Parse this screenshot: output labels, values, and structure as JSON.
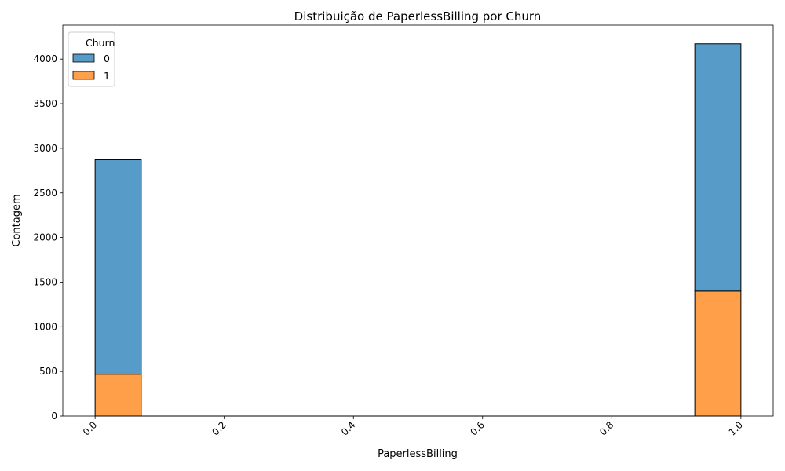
{
  "chart_data": {
    "type": "bar",
    "stacked": true,
    "title": "Distribuição de PaperlessBilling por Churn",
    "xlabel": "PaperlessBilling",
    "ylabel": "Contagem",
    "xlim": [
      -0.05,
      1.05
    ],
    "ylim": [
      0,
      4380
    ],
    "x_ticks": [
      0.0,
      0.2,
      0.4,
      0.6,
      0.8,
      1.0
    ],
    "x_tick_labels": [
      "0.0",
      "0.2",
      "0.4",
      "0.6",
      "0.8",
      "1.0"
    ],
    "y_ticks": [
      0,
      500,
      1000,
      1500,
      2000,
      2500,
      3000,
      3500,
      4000
    ],
    "y_tick_labels": [
      "0",
      "500",
      "1000",
      "1500",
      "2000",
      "2500",
      "3000",
      "3500",
      "4000"
    ],
    "bin_width": 0.0714,
    "bins": [
      0.0,
      0.9286
    ],
    "series": [
      {
        "name": "1",
        "color": "#ff9f4a",
        "values": [
          469,
          1400
        ]
      },
      {
        "name": "0",
        "color": "#579bc9",
        "values": [
          2403,
          2771
        ]
      }
    ],
    "legend": {
      "title": "Churn",
      "location": "upper-left",
      "entries": [
        "0",
        "1"
      ]
    }
  }
}
